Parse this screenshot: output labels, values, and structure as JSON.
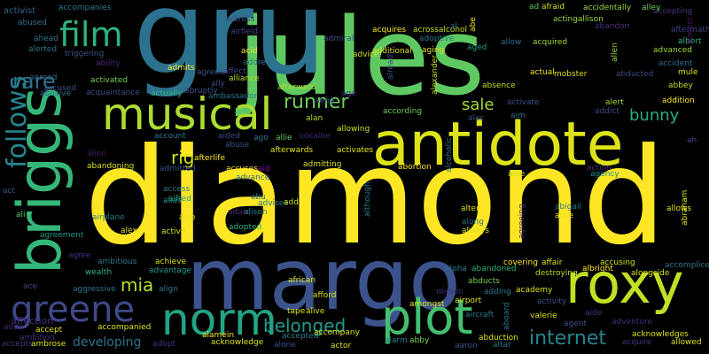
{
  "words": [
    {
      "text": "diamond",
      "color": "#fde725"
    },
    {
      "text": "jules",
      "color": "#5ec962"
    },
    {
      "text": "gru",
      "color": "#2c728e"
    },
    {
      "text": "margo",
      "color": "#3b528b"
    },
    {
      "text": "antidote",
      "color": "#dde318"
    },
    {
      "text": "roxy",
      "color": "#c2df23"
    },
    {
      "text": "briggs",
      "color": "#35b779"
    },
    {
      "text": "musical",
      "color": "#addc30"
    },
    {
      "text": "norm",
      "color": "#21a585"
    },
    {
      "text": "plot",
      "color": "#44bf70"
    },
    {
      "text": "greene",
      "color": "#3e4989"
    },
    {
      "text": "film",
      "color": "#2db27d"
    },
    {
      "text": "follows",
      "color": "#24868e"
    },
    {
      "text": "rare",
      "color": "#2c728e"
    },
    {
      "text": "internet",
      "color": "#24868e"
    },
    {
      "text": "runner",
      "color": "#6ece58"
    },
    {
      "text": "belonged",
      "color": "#1f9a8a"
    },
    {
      "text": "mia",
      "color": "#b5de2b"
    },
    {
      "text": "bunny",
      "color": "#28ae80"
    },
    {
      "text": "rig",
      "color": "#d2e21b"
    },
    {
      "text": "sale",
      "color": "#a5db36"
    },
    {
      "text": "developing",
      "color": "#2c728e"
    },
    {
      "text": "affection",
      "color": "#472f7d"
    },
    {
      "text": "activist",
      "color": "#31688e"
    },
    {
      "text": "abused",
      "color": "#2e6f8e"
    },
    {
      "text": "ahead",
      "color": "#2a768e"
    },
    {
      "text": "alerted",
      "color": "#2a788e"
    },
    {
      "text": "accused",
      "color": "#3b528b"
    },
    {
      "text": "agreed",
      "color": "#306a8e"
    },
    {
      "text": "abusive",
      "color": "#2c718e"
    },
    {
      "text": "act",
      "color": "#38588c"
    },
    {
      "text": "ali",
      "color": "#5ec962"
    },
    {
      "text": "agree",
      "color": "#472a7a"
    },
    {
      "text": "ace",
      "color": "#3f4889"
    },
    {
      "text": "accepts",
      "color": "#443a83"
    },
    {
      "text": "adds",
      "color": "#482475"
    },
    {
      "text": "accompanies",
      "color": "#2a788e"
    },
    {
      "text": "actress",
      "color": "#3e4989"
    },
    {
      "text": "airfield",
      "color": "#414487"
    },
    {
      "text": "admiral",
      "color": "#3b528b"
    },
    {
      "text": "acquires",
      "color": "#fde725"
    },
    {
      "text": "adoptive",
      "color": "#2a788e"
    },
    {
      "text": "acrossalcohol",
      "color": "#c8e020"
    },
    {
      "text": "additional",
      "color": "#e5e419"
    },
    {
      "text": "afraid",
      "color": "#d0e11c"
    },
    {
      "text": "actingallison",
      "color": "#9bd93c"
    },
    {
      "text": "accidentally",
      "color": "#9bd93c"
    },
    {
      "text": "alley",
      "color": "#6ece58"
    },
    {
      "text": "accepting",
      "color": "#46327e"
    },
    {
      "text": "aftermath",
      "color": "#424086"
    },
    {
      "text": "abandon",
      "color": "#46307e"
    },
    {
      "text": "albert",
      "color": "#2fb47c"
    },
    {
      "text": "advanced",
      "color": "#9fda3a"
    },
    {
      "text": "accident",
      "color": "#2c728e"
    },
    {
      "text": "mule",
      "color": "#dde318"
    },
    {
      "text": "abbey",
      "color": "#bddf26"
    },
    {
      "text": "addition",
      "color": "#fde725"
    },
    {
      "text": "ah",
      "color": "#3e4989"
    },
    {
      "text": "abraham",
      "color": "#dde318"
    },
    {
      "text": "almost",
      "color": "#48186a"
    },
    {
      "text": "allen",
      "color": "#9bd93c"
    },
    {
      "text": "mobster",
      "color": "#d8e219"
    },
    {
      "text": "abducted",
      "color": "#3e4989"
    },
    {
      "text": "alert",
      "color": "#a0da39"
    },
    {
      "text": "addict",
      "color": "#3f4889"
    },
    {
      "text": "aim",
      "color": "#2b748e"
    },
    {
      "text": "activate",
      "color": "#3b528b"
    },
    {
      "text": "absence",
      "color": "#c2df23"
    },
    {
      "text": "actual",
      "color": "#f4e61e"
    },
    {
      "text": "acquired",
      "color": "#9fda3a"
    },
    {
      "text": "allow",
      "color": "#2e6e8e"
    },
    {
      "text": "aged",
      "color": "#1e9b8a"
    },
    {
      "text": "abe",
      "color": "#ece51b"
    },
    {
      "text": "al",
      "color": "#2a788e"
    },
    {
      "text": "ad",
      "color": "#5ec962"
    },
    {
      "text": "aging",
      "color": "#e5e419"
    },
    {
      "text": "already",
      "color": "#3b528b"
    },
    {
      "text": "alexander",
      "color": "#c2df23"
    },
    {
      "text": "advice",
      "color": "#d8e219"
    },
    {
      "text": "address",
      "color": "#2b748e"
    },
    {
      "text": "accomplice",
      "color": "#2a788e"
    },
    {
      "text": "triggering",
      "color": "#3b528b"
    },
    {
      "text": "ability",
      "color": "#482878"
    },
    {
      "text": "activated",
      "color": "#7ad151"
    },
    {
      "text": "acquaintance",
      "color": "#3b528b"
    },
    {
      "text": "actually",
      "color": "#2fb47c"
    },
    {
      "text": "admits",
      "color": "#fde725"
    },
    {
      "text": "agrees",
      "color": "#3b528b"
    },
    {
      "text": "affect",
      "color": "#414487"
    },
    {
      "text": "ally",
      "color": "#3e4989"
    },
    {
      "text": "alliance",
      "color": "#b5de2b"
    },
    {
      "text": "abruptly",
      "color": "#3b528b"
    },
    {
      "text": "ambassador",
      "color": "#2a788e"
    },
    {
      "text": "afterward",
      "color": "#b5de2b"
    },
    {
      "text": "aang",
      "color": "#3b528b"
    },
    {
      "text": "age",
      "color": "#443a83"
    },
    {
      "text": "acid",
      "color": "#fde725"
    },
    {
      "text": "alan",
      "color": "#b5de2b"
    },
    {
      "text": "according",
      "color": "#6ece58"
    },
    {
      "text": "alec",
      "color": "#3b528b"
    },
    {
      "text": "account",
      "color": "#2a788e"
    },
    {
      "text": "aided",
      "color": "#3e4989"
    },
    {
      "text": "abuse",
      "color": "#3b528b"
    },
    {
      "text": "ago",
      "color": "#2a788e"
    },
    {
      "text": "allie",
      "color": "#5ec962"
    },
    {
      "text": "cocaine",
      "color": "#472a7a"
    },
    {
      "text": "allowing",
      "color": "#cae11f"
    },
    {
      "text": "alcoholic",
      "color": "#2a788e"
    },
    {
      "text": "alien",
      "color": "#481b6d"
    },
    {
      "text": "afterlife",
      "color": "#fde725"
    },
    {
      "text": "accuses",
      "color": "#fde725"
    },
    {
      "text": "aid",
      "color": "#7e03a8"
    },
    {
      "text": "afterwards",
      "color": "#dde318"
    },
    {
      "text": "activates",
      "color": "#e5e419"
    },
    {
      "text": "admitting",
      "color": "#d8e219"
    },
    {
      "text": "abortion",
      "color": "#fde725"
    },
    {
      "text": "abandoning",
      "color": "#d8e219"
    },
    {
      "text": "admitted",
      "color": "#3b528b"
    },
    {
      "text": "advance",
      "color": "#2c728e"
    },
    {
      "text": "able",
      "color": "#cae11f"
    },
    {
      "text": "agency",
      "color": "#21918c"
    },
    {
      "text": "action",
      "color": "#46327e"
    },
    {
      "text": "access",
      "color": "#2a788e"
    },
    {
      "text": "alias",
      "color": "#1f9a8a"
    },
    {
      "text": "alfred",
      "color": "#1e9b8a"
    },
    {
      "text": "abu",
      "color": "#2a788e"
    },
    {
      "text": "advises",
      "color": "#2a788e"
    },
    {
      "text": "add",
      "color": "#cae11f"
    },
    {
      "text": "adam",
      "color": "#482878"
    },
    {
      "text": "alison",
      "color": "#26828e"
    },
    {
      "text": "although",
      "color": "#2a788e"
    },
    {
      "text": "alter",
      "color": "#dde318"
    },
    {
      "text": "abigail",
      "color": "#2a788e"
    },
    {
      "text": "agreeing",
      "color": "#46307e"
    },
    {
      "text": "alice",
      "color": "#e5e419"
    },
    {
      "text": "allows",
      "color": "#dde318"
    },
    {
      "text": "agreement",
      "color": "#1f9a8a"
    },
    {
      "text": "airplane",
      "color": "#2a788e"
    },
    {
      "text": "also",
      "color": "#dde318"
    },
    {
      "text": "alex",
      "color": "#dde318"
    },
    {
      "text": "active",
      "color": "#dde318"
    },
    {
      "text": "adopted",
      "color": "#2fb47c"
    },
    {
      "text": "along",
      "color": "#2c728e"
    },
    {
      "text": "always",
      "color": "#dde318"
    },
    {
      "text": "ambitious",
      "color": "#2a788e"
    },
    {
      "text": "achieve",
      "color": "#dde318"
    },
    {
      "text": "advantage",
      "color": "#1f9a8a"
    },
    {
      "text": "affair",
      "color": "#dde318"
    },
    {
      "text": "albright",
      "color": "#fde725"
    },
    {
      "text": "alongside",
      "color": "#d8e219"
    },
    {
      "text": "accusing",
      "color": "#d8e219"
    },
    {
      "text": "destroying",
      "color": "#b5de2b"
    },
    {
      "text": "covering",
      "color": "#fde725"
    },
    {
      "text": "alpha",
      "color": "#2a788e"
    },
    {
      "text": "abandoned",
      "color": "#2fb47c"
    },
    {
      "text": "abducts",
      "color": "#7ad151"
    },
    {
      "text": "wealth",
      "color": "#2fb47c"
    },
    {
      "text": "aggressive",
      "color": "#2a788e"
    },
    {
      "text": "align",
      "color": "#2a788e"
    },
    {
      "text": "african",
      "color": "#dde318"
    },
    {
      "text": "afford",
      "color": "#d8e219"
    },
    {
      "text": "adding",
      "color": "#2a788e"
    },
    {
      "text": "academy",
      "color": "#dde318"
    },
    {
      "text": "minion",
      "color": "#46327e"
    },
    {
      "text": "amongst",
      "color": "#dde318"
    },
    {
      "text": "airport",
      "color": "#dde318"
    },
    {
      "text": "activity",
      "color": "#3b528b"
    },
    {
      "text": "aide",
      "color": "#46327e"
    },
    {
      "text": "adventure",
      "color": "#46307e"
    },
    {
      "text": "acquire",
      "color": "#46307e"
    },
    {
      "text": "acknowledges",
      "color": "#dde318"
    },
    {
      "text": "allowed",
      "color": "#d8e219"
    },
    {
      "text": "ambition",
      "color": "#46327e"
    },
    {
      "text": "accompanied",
      "color": "#dde318"
    },
    {
      "text": "ambrose",
      "color": "#dde318"
    },
    {
      "text": "accept",
      "color": "#dde318"
    },
    {
      "text": "adopt",
      "color": "#46307e"
    },
    {
      "text": "alamein",
      "color": "#fde725"
    },
    {
      "text": "acknowledge",
      "color": "#dde318"
    },
    {
      "text": "alive",
      "color": "#dde318"
    },
    {
      "text": "tape",
      "color": "#dde318"
    },
    {
      "text": "accepted",
      "color": "#2a788e"
    },
    {
      "text": "accompany",
      "color": "#d8e219"
    },
    {
      "text": "alone",
      "color": "#3b528b"
    },
    {
      "text": "actor",
      "color": "#dde318"
    },
    {
      "text": "alarm",
      "color": "#2a788e"
    },
    {
      "text": "abby",
      "color": "#7ad151"
    },
    {
      "text": "aaron",
      "color": "#3b528b"
    },
    {
      "text": "abduction",
      "color": "#dde318"
    },
    {
      "text": "altar",
      "color": "#2a788e"
    },
    {
      "text": "aircraft",
      "color": "#2a788e"
    },
    {
      "text": "aboard",
      "color": "#2a788e"
    },
    {
      "text": "valerie",
      "color": "#dde318"
    },
    {
      "text": "agent",
      "color": "#3b528b"
    }
  ]
}
